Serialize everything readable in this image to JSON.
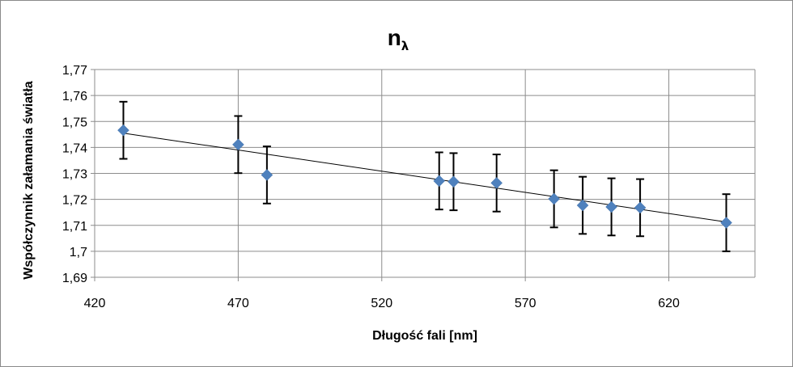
{
  "chart_data": {
    "type": "scatter",
    "title": "n",
    "title_subscript": "λ",
    "xlabel": "Długość fali [nm]",
    "ylabel": "Współczynnik załamania światła",
    "xlim": [
      420,
      650
    ],
    "ylim": [
      1.69,
      1.77
    ],
    "xticks": [
      420,
      470,
      520,
      570,
      620
    ],
    "xtick_labels": [
      "420",
      "470",
      "520",
      "570",
      "620"
    ],
    "yticks": [
      1.69,
      1.7,
      1.71,
      1.72,
      1.73,
      1.74,
      1.75,
      1.76,
      1.77
    ],
    "ytick_labels": [
      "1,69",
      "1,7",
      "1,71",
      "1,72",
      "1,73",
      "1,74",
      "1,75",
      "1,76",
      "1,77"
    ],
    "grid": true,
    "legend": "none",
    "marker": "diamond",
    "marker_color": "#4f81bd",
    "errorbar_color": "#000000",
    "trendline": {
      "type": "linear",
      "color": "#000000",
      "x": [
        430,
        640
      ],
      "y": [
        1.7455,
        1.7113
      ]
    },
    "series": [
      {
        "x": [
          430,
          470,
          480,
          540,
          545,
          560,
          580,
          590,
          600,
          610,
          640
        ],
        "y": [
          1.7466,
          1.7411,
          1.7294,
          1.7271,
          1.7268,
          1.7263,
          1.7202,
          1.7177,
          1.7171,
          1.7168,
          1.711
        ],
        "error": 0.011
      }
    ]
  }
}
